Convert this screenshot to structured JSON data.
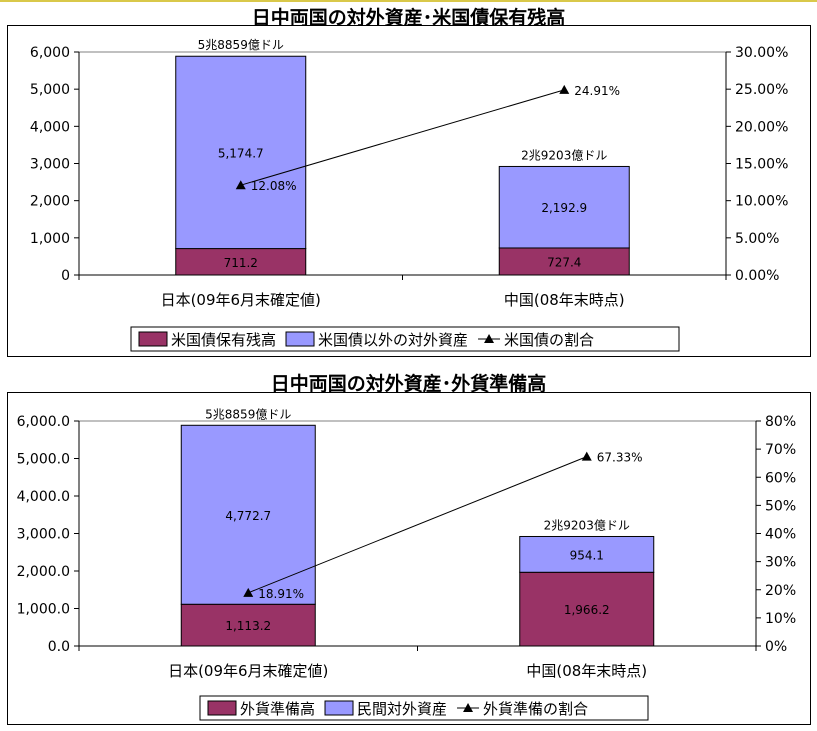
{
  "colors": {
    "accent_border": "#d9c84a",
    "series_dark": "#993366",
    "series_light": "#9999ff",
    "line": "#000000",
    "gridline": "#000000"
  },
  "chart_data": [
    {
      "type": "bar",
      "stacked": true,
      "title": "日中両国の対外資産･米国債保有残高",
      "categories": [
        "日本(09年6月末確定値)",
        "中国(08年末時点)"
      ],
      "series": [
        {
          "name": "米国債保有残高",
          "axis": "left",
          "values": [
            711.2,
            727.4
          ],
          "labels": [
            "711.2",
            "727.4"
          ]
        },
        {
          "name": "米国債以外の対外資産",
          "axis": "left",
          "values": [
            5174.7,
            2192.9
          ],
          "labels": [
            "5,174.7",
            "2,192.9"
          ]
        },
        {
          "name": "米国債の割合",
          "type": "line",
          "axis": "right",
          "values": [
            12.08,
            24.91
          ],
          "labels": [
            "12.08%",
            "24.91%"
          ]
        }
      ],
      "total_labels": [
        "5兆8859億ドル",
        "2兆9203億ドル"
      ],
      "ylim": [
        0,
        6000
      ],
      "yticks": [
        "0",
        "1,000",
        "2,000",
        "3,000",
        "4,000",
        "5,000",
        "6,000"
      ],
      "y2lim": [
        0,
        30
      ],
      "y2ticks": [
        "0.00%",
        "5.00%",
        "10.00%",
        "15.00%",
        "20.00%",
        "25.00%",
        "30.00%"
      ],
      "grid": false,
      "legend_position": "bottom"
    },
    {
      "type": "bar",
      "stacked": true,
      "title": "日中両国の対外資産･外貨準備高",
      "categories": [
        "日本(09年6月末確定値)",
        "中国(08年末時点)"
      ],
      "series": [
        {
          "name": "外貨準備高",
          "axis": "left",
          "values": [
            1113.2,
            1966.2
          ],
          "labels": [
            "1,113.2",
            "1,966.2"
          ]
        },
        {
          "name": "民間対外資産",
          "axis": "left",
          "values": [
            4772.7,
            954.1
          ],
          "labels": [
            "4,772.7",
            "954.1"
          ]
        },
        {
          "name": "外貨準備の割合",
          "type": "line",
          "axis": "right",
          "values": [
            18.91,
            67.33
          ],
          "labels": [
            "18.91%",
            "67.33%"
          ]
        }
      ],
      "total_labels": [
        "5兆8859億ドル",
        "2兆9203億ドル"
      ],
      "ylim": [
        0,
        6000
      ],
      "yticks": [
        "0.0",
        "1,000.0",
        "2,000.0",
        "3,000.0",
        "4,000.0",
        "5,000.0",
        "6,000.0"
      ],
      "y2lim": [
        0,
        80
      ],
      "y2ticks": [
        "0%",
        "10%",
        "20%",
        "30%",
        "40%",
        "50%",
        "60%",
        "70%",
        "80%"
      ],
      "grid": false,
      "legend_position": "bottom"
    }
  ]
}
